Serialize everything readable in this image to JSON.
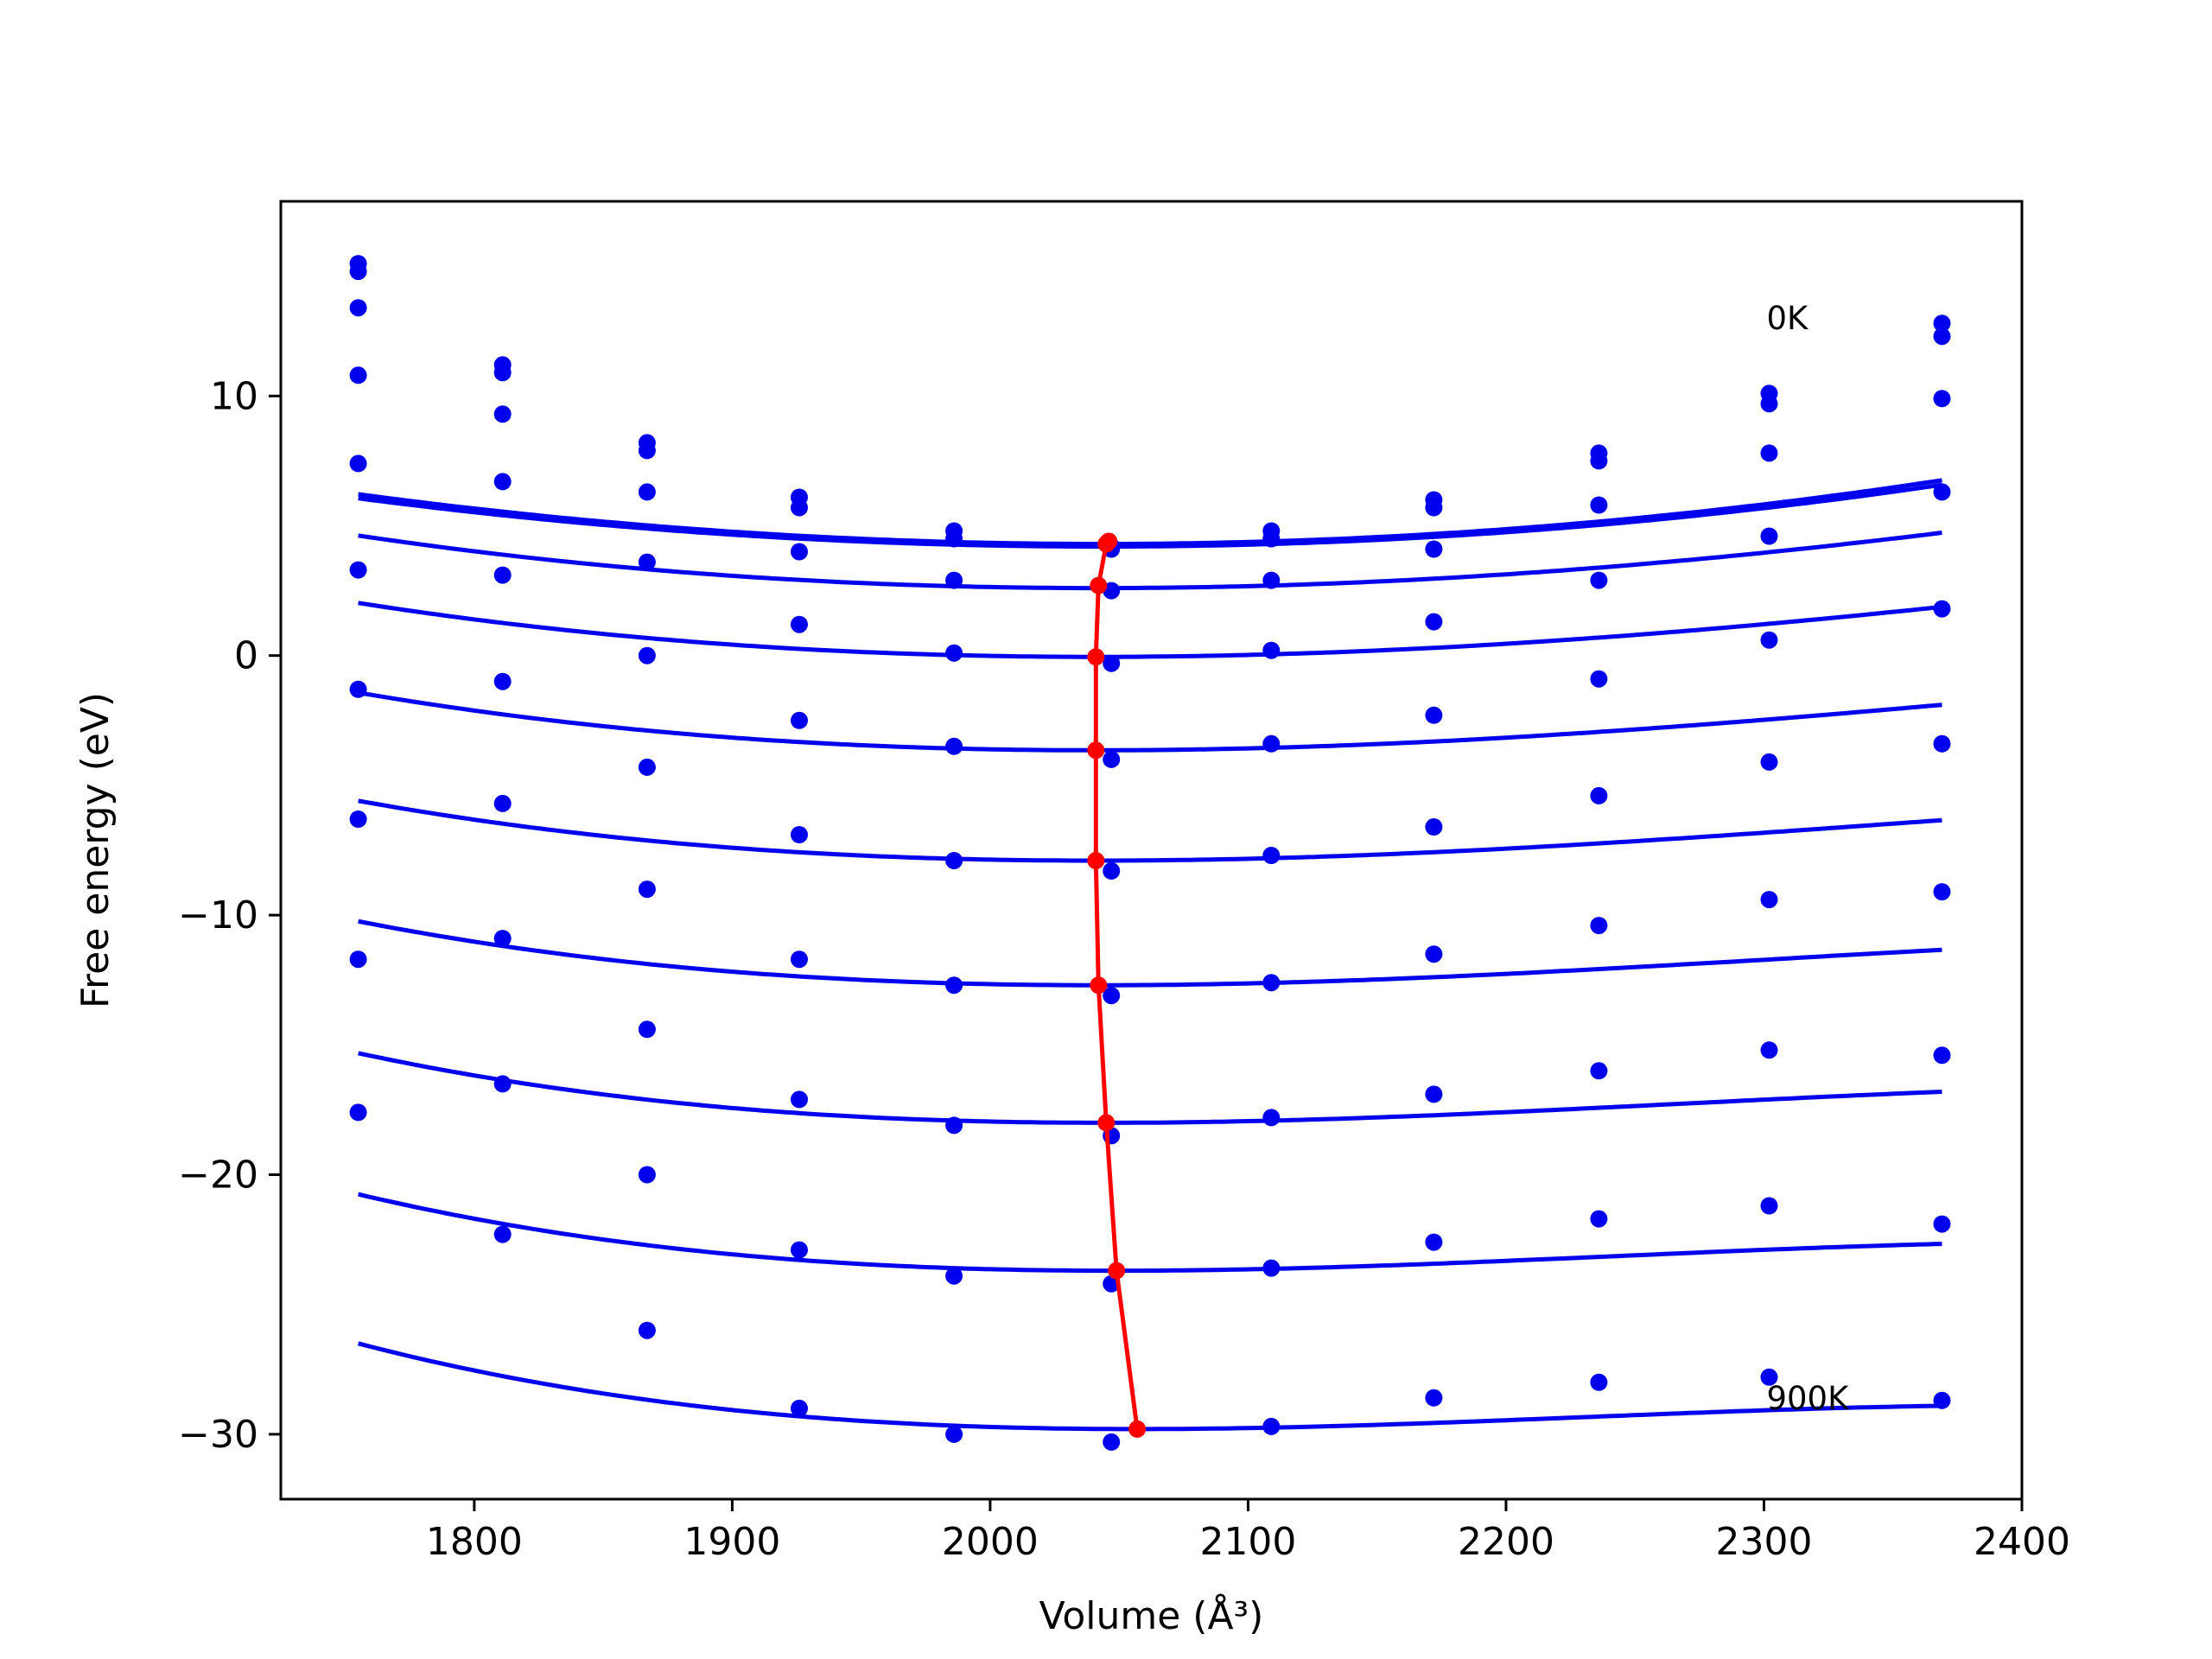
{
  "chart_data": {
    "type": "line",
    "xlabel": "Volume (Å³)",
    "ylabel": "Free energy (eV)",
    "xlim": [
      1725,
      2400
    ],
    "ylim": [
      -32.5,
      17.5
    ],
    "xticks": [
      1800,
      1900,
      2000,
      2100,
      2200,
      2300,
      2400
    ],
    "yticks": [
      -30,
      -20,
      -10,
      0,
      10
    ],
    "xtick_labels": [
      "1800",
      "1900",
      "2000",
      "2100",
      "2200",
      "2300",
      "2400"
    ],
    "ytick_labels": [
      "−30",
      "−20",
      "−10",
      "0",
      "10"
    ],
    "grid": false,
    "annotations": [
      {
        "text": "0K",
        "x": 2301,
        "y": 13.0
      },
      {
        "text": "900K",
        "x": 2301,
        "y": -28.6
      }
    ],
    "colors": {
      "fit": "#0000ee",
      "points": "#0000ee",
      "minima": "#ff0000"
    },
    "x": [
      1755,
      1811,
      1867,
      1926,
      1986,
      2047,
      2109,
      2172,
      2236,
      2302,
      2369
    ],
    "series": [
      {
        "points": [
          15.1,
          11.2,
          8.2,
          6.1,
          4.8,
          4.2,
          4.8,
          6.0,
          7.8,
          10.1,
          12.8
        ],
        "fit": {
          "x0": 2043,
          "a": 4.3,
          "b": 2.31e-05,
          "c": 0,
          "xs": [
            1755,
            2369
          ]
        }
      },
      {
        "points": [
          14.8,
          10.9,
          7.9,
          5.7,
          4.5,
          4.1,
          4.5,
          5.7,
          7.5,
          9.7,
          12.3
        ],
        "fit": {
          "x0": 2043,
          "a": 4.2,
          "b": 2.24e-05,
          "c": 0,
          "xs": [
            1755,
            2369
          ]
        }
      },
      {
        "points": [
          13.4,
          9.3,
          6.3,
          4.0,
          2.9,
          2.5,
          2.9,
          4.1,
          5.8,
          7.8,
          9.9
        ],
        "fit": {
          "x0": 2042,
          "a": 2.6,
          "b": 2.24e-05,
          "c": -7.5e-09,
          "xs": [
            1755,
            2369
          ]
        }
      },
      {
        "points": [
          10.8,
          6.7,
          3.6,
          1.2,
          0.1,
          -0.3,
          0.2,
          1.3,
          2.9,
          4.6,
          6.3
        ],
        "fit": {
          "x0": 2041,
          "a": -0.05,
          "b": 2.19e-05,
          "c": -1.22e-08,
          "xs": [
            1755,
            2369
          ]
        }
      },
      {
        "points": [
          7.4,
          3.1,
          0.0,
          -2.5,
          -3.5,
          -4.0,
          -3.4,
          -2.3,
          -0.9,
          0.6,
          1.8
        ],
        "fit": {
          "x0": 2041,
          "a": -3.65,
          "b": 2.21e-05,
          "c": -1.77e-08,
          "xs": [
            1755,
            2369
          ]
        }
      },
      {
        "points": [
          3.3,
          -1.0,
          -4.3,
          -6.9,
          -7.9,
          -8.3,
          -7.7,
          -6.6,
          -5.4,
          -4.1,
          -3.4
        ],
        "fit": {
          "x0": 2041,
          "a": -7.9,
          "b": 2.18e-05,
          "c": -2.23e-08,
          "xs": [
            1755,
            2369
          ]
        }
      },
      {
        "points": [
          -1.3,
          -5.7,
          -9.0,
          -11.7,
          -12.7,
          -13.1,
          -12.6,
          -11.5,
          -10.4,
          -9.4,
          -9.1
        ],
        "fit": {
          "x0": 2042,
          "a": -12.7,
          "b": 2.19e-05,
          "c": -2.79e-08,
          "xs": [
            1755,
            2369
          ]
        }
      },
      {
        "points": [
          -6.3,
          -10.9,
          -14.4,
          -17.1,
          -18.1,
          -18.5,
          -17.8,
          -16.9,
          -16.0,
          -15.2,
          -15.4
        ],
        "fit": {
          "x0": 2045,
          "a": -18.0,
          "b": 2.22e-05,
          "c": -3.34e-08,
          "xs": [
            1755,
            2369
          ]
        }
      },
      {
        "points": [
          -11.7,
          -16.5,
          -20.0,
          -22.9,
          -23.9,
          -24.2,
          -23.6,
          -22.6,
          -21.7,
          -21.2,
          -21.9
        ],
        "fit": {
          "x0": 2049,
          "a": -23.7,
          "b": 2.26e-05,
          "c": -3.91e-08,
          "xs": [
            1755,
            2369
          ]
        }
      },
      {
        "points": [
          -17.6,
          -22.3,
          -26.0,
          -29.0,
          -30.0,
          -30.3,
          -29.7,
          -28.6,
          -28.0,
          -27.8,
          -28.7
        ],
        "fit": {
          "x0": 2057,
          "a": -29.8,
          "b": 2.29e-05,
          "c": -4.39e-08,
          "xs": [
            1755,
            2369
          ]
        }
      }
    ],
    "minima": {
      "x": [
        2046,
        2045,
        2042,
        2041,
        2041,
        2041,
        2042,
        2045,
        2049,
        2057
      ],
      "y": [
        4.4,
        4.3,
        2.7,
        -0.05,
        -3.65,
        -7.9,
        -12.7,
        -18.0,
        -23.7,
        -29.8
      ]
    }
  }
}
